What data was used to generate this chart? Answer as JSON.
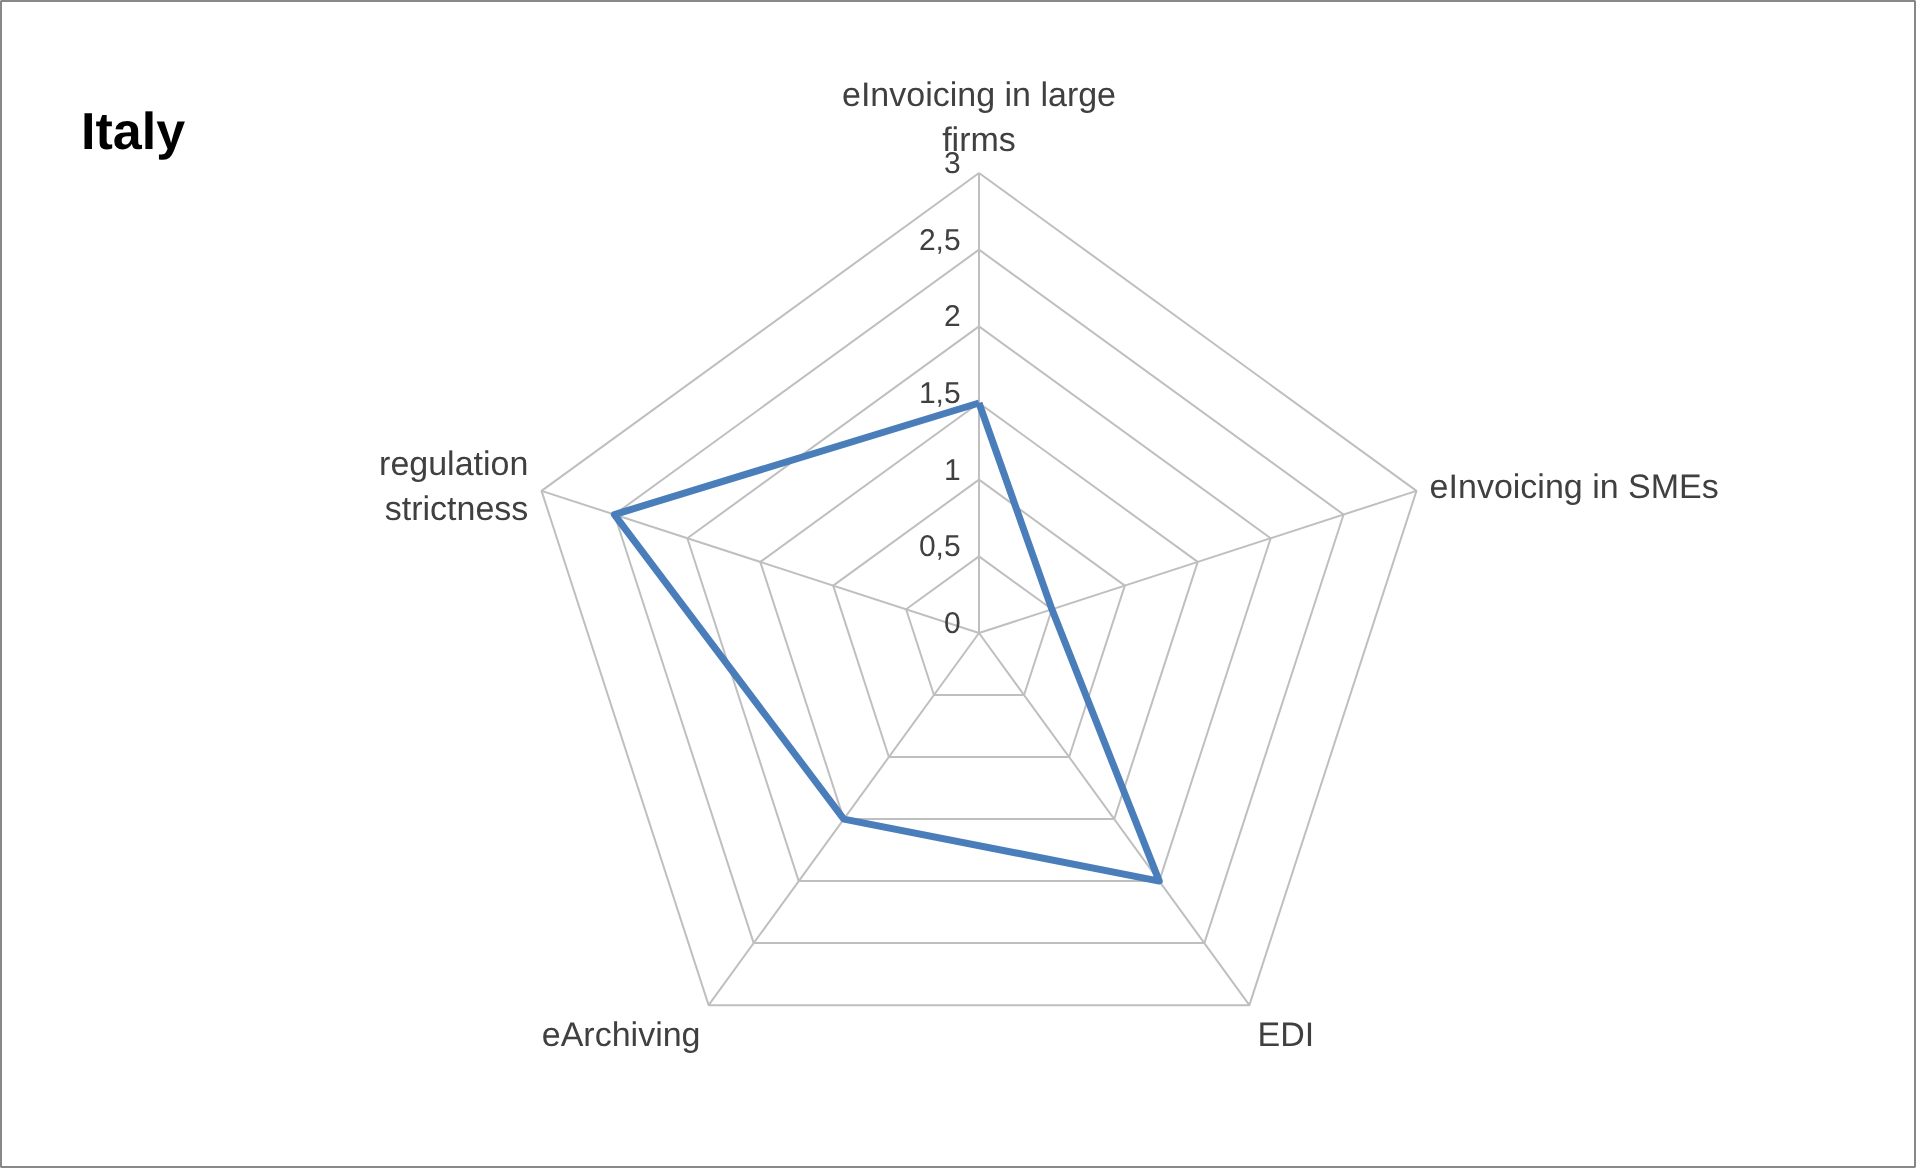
{
  "chart_data": {
    "type": "radar",
    "title": "Italy",
    "categories": [
      "eInvoicing in large firms",
      "eInvoicing in SMEs",
      "EDI",
      "eArchiving",
      "regulation strictness"
    ],
    "series": [
      {
        "color": "#4a7ebb",
        "values": [
          1.5,
          0.5,
          2,
          1.5,
          2.5
        ]
      }
    ],
    "ylim": [
      0,
      3
    ],
    "yticks": [
      0,
      {
        "value": 0.5,
        "label": "0,5"
      },
      1,
      {
        "value": 1.5,
        "label": "1,5"
      },
      2,
      {
        "value": 2.5,
        "label": "2,5"
      },
      3
    ],
    "grid": true
  }
}
